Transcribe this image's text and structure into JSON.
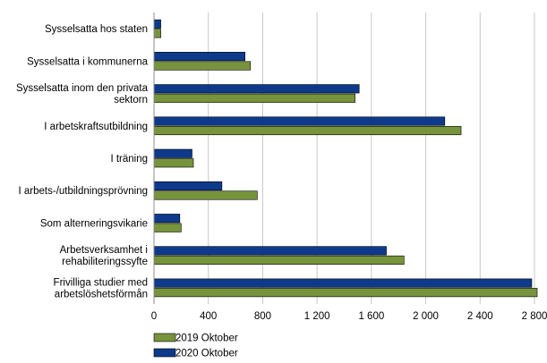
{
  "chart_data": {
    "type": "bar",
    "orientation": "horizontal",
    "categories": [
      [
        "Sysselsatta hos staten"
      ],
      [
        "Sysselsatta i kommunerna"
      ],
      [
        "Sysselsatta inom den privata",
        "sektorn"
      ],
      [
        "I arbetskraftsutbildning"
      ],
      [
        "I träning"
      ],
      [
        "I arbets-/utbildningsprövning"
      ],
      [
        "Som alterneringsvikarie"
      ],
      [
        "Arbetsverksamhet i",
        "rehabiliteringssyfte"
      ],
      [
        "Frivilliga studier med",
        "arbetslöshetsförmån"
      ]
    ],
    "series": [
      {
        "name": "2019 Oktober",
        "color": "#77933c",
        "values": [
          50,
          710,
          1480,
          2260,
          290,
          760,
          200,
          1840,
          2820
        ]
      },
      {
        "name": "2020 Oktober",
        "color": "#0e3a8b",
        "values": [
          50,
          670,
          1510,
          2140,
          280,
          500,
          190,
          1710,
          2780
        ]
      }
    ],
    "xlim": [
      0,
      2800
    ],
    "ticks": [
      0,
      400,
      800,
      1200,
      1600,
      2000,
      2400,
      2800
    ],
    "tick_labels": [
      "0",
      "400",
      "800",
      "1 200",
      "1 600",
      "2 000",
      "2 400",
      "2 800"
    ],
    "grid": true,
    "legend_position": "bottom-left",
    "title": "",
    "xlabel": "",
    "ylabel": ""
  }
}
